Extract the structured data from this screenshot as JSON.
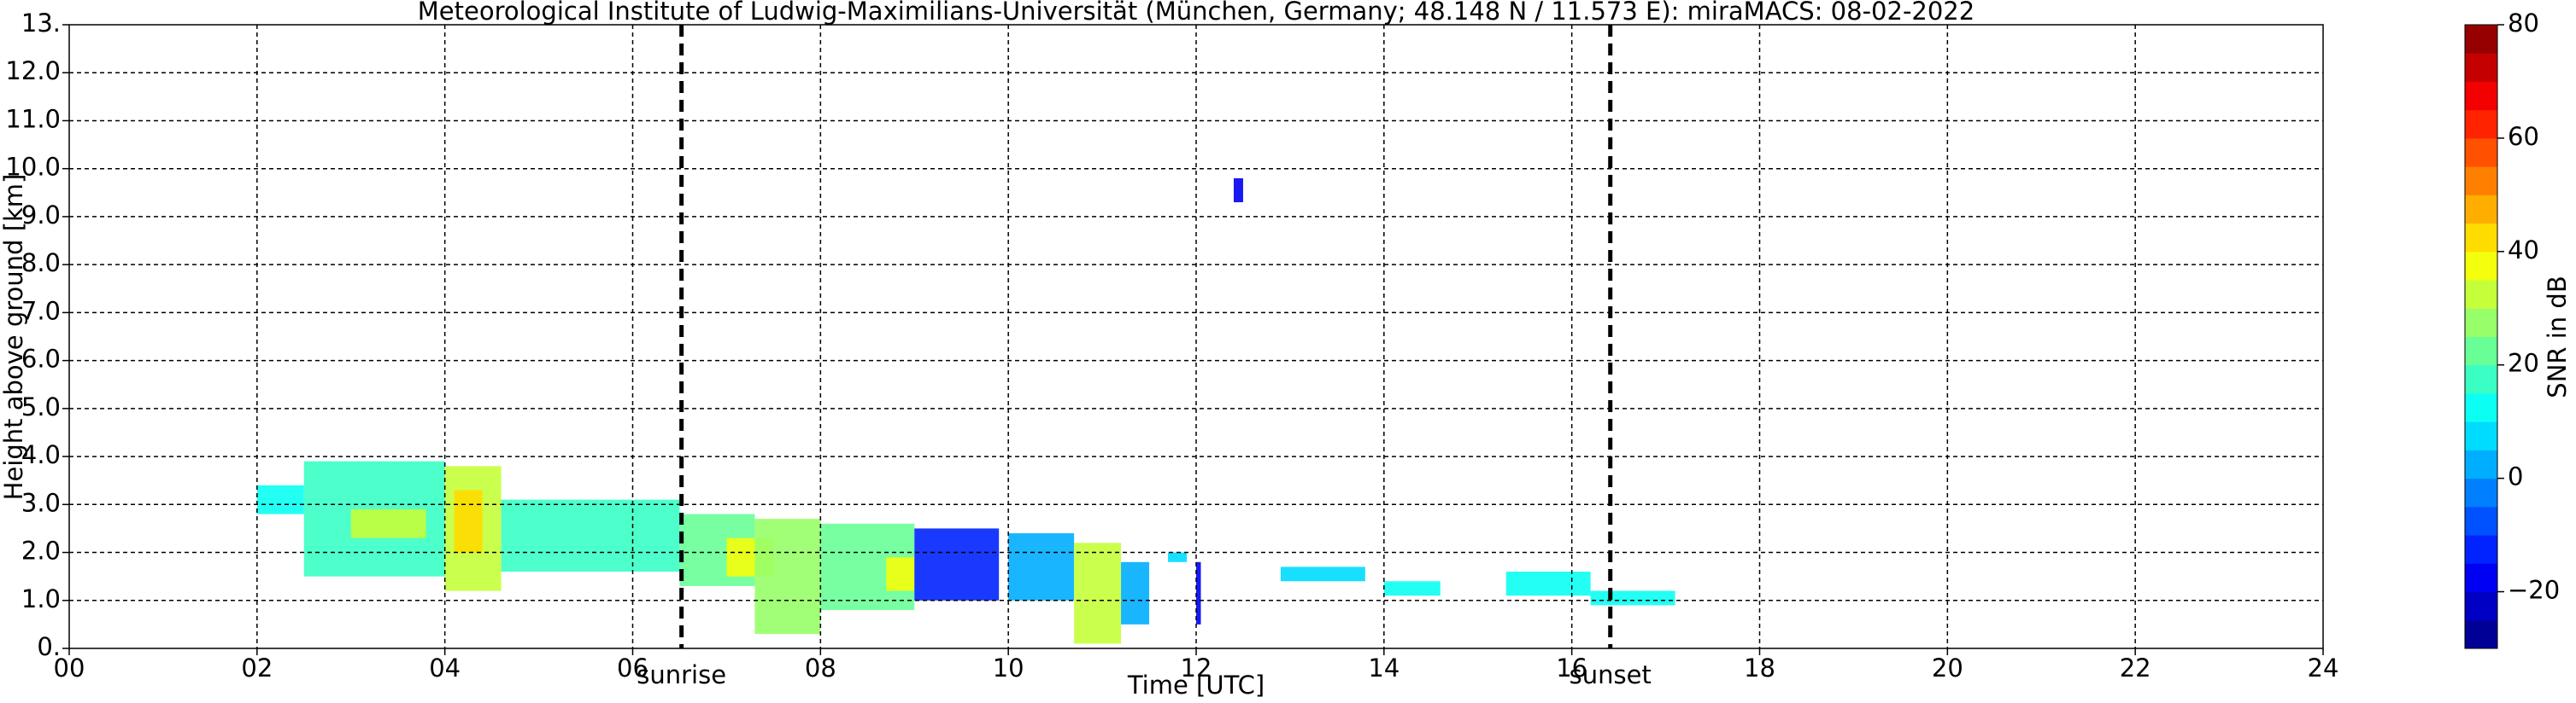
{
  "chart_data": {
    "type": "heatmap",
    "title": "Meteorological Institute of Ludwig-Maximilians-Universität (München, Germany; 48.148 N / 11.573 E):    miraMACS: 08-02-2022",
    "x_label": "Time [UTC]",
    "y_label": "Height above ground [km]",
    "xlim": [
      0,
      24
    ],
    "xticks": [
      {
        "value": 0,
        "label": "00"
      },
      {
        "value": 2,
        "label": "02"
      },
      {
        "value": 4,
        "label": "04"
      },
      {
        "value": 6,
        "label": "06"
      },
      {
        "value": 8,
        "label": "08"
      },
      10,
      12,
      14,
      16,
      18,
      20,
      22,
      24
    ],
    "ylim": [
      0,
      13
    ],
    "yticks": [
      {
        "value": 0,
        "label": "0."
      },
      {
        "value": 1,
        "label": "1.0"
      },
      {
        "value": 2,
        "label": "2.0"
      },
      {
        "value": 3,
        "label": "3.0"
      },
      {
        "value": 4,
        "label": "4.0"
      },
      {
        "value": 5,
        "label": "5.0"
      },
      {
        "value": 6,
        "label": "6.0"
      },
      {
        "value": 7,
        "label": "7.0"
      },
      {
        "value": 8,
        "label": "8.0"
      },
      {
        "value": 9,
        "label": "9.0"
      },
      {
        "value": 10,
        "label": "10.0"
      },
      {
        "value": 11,
        "label": "11.0"
      },
      {
        "value": 12,
        "label": "12.0"
      },
      {
        "value": 13,
        "label": "13."
      }
    ],
    "grid": true,
    "cells": [
      [
        2.0,
        2.5,
        2.8,
        3.4,
        10
      ],
      [
        2.5,
        4.0,
        1.5,
        3.9,
        15
      ],
      [
        3.0,
        3.8,
        2.3,
        2.9,
        30
      ],
      [
        4.0,
        4.6,
        1.2,
        3.8,
        30
      ],
      [
        4.1,
        4.4,
        2.0,
        3.3,
        40
      ],
      [
        4.6,
        6.5,
        1.6,
        3.1,
        15
      ],
      [
        6.5,
        7.3,
        1.3,
        2.8,
        20
      ],
      [
        7.0,
        7.5,
        1.5,
        2.3,
        35
      ],
      [
        7.3,
        8.0,
        0.3,
        2.7,
        25
      ],
      [
        8.0,
        9.0,
        0.8,
        2.6,
        20
      ],
      [
        8.7,
        9.0,
        1.2,
        1.9,
        35
      ],
      [
        9.0,
        9.9,
        1.0,
        2.5,
        -15
      ],
      [
        10.0,
        10.7,
        1.0,
        2.4,
        0
      ],
      [
        10.7,
        11.2,
        0.1,
        2.2,
        30
      ],
      [
        11.2,
        11.5,
        0.5,
        1.8,
        0
      ],
      [
        11.7,
        11.9,
        1.8,
        2.0,
        5
      ],
      [
        12.0,
        12.05,
        0.5,
        1.8,
        -20
      ],
      [
        12.4,
        12.5,
        9.3,
        9.8,
        -20
      ],
      [
        12.9,
        13.8,
        1.4,
        1.7,
        5
      ],
      [
        14.0,
        14.6,
        1.1,
        1.4,
        10
      ],
      [
        15.3,
        16.2,
        1.1,
        1.6,
        10
      ],
      [
        16.2,
        17.1,
        0.9,
        1.2,
        10
      ]
    ],
    "events": [
      {
        "time": 6.52,
        "label": "sunrise"
      },
      {
        "time": 16.41,
        "label": "sunset"
      }
    ],
    "colorbar": {
      "label": "SNR in dB",
      "lim": [
        -30,
        80
      ],
      "colormap": "jet",
      "step": 5,
      "ticks": [
        {
          "value": -20,
          "label": "−20"
        },
        0,
        20,
        40,
        60,
        80
      ]
    }
  }
}
